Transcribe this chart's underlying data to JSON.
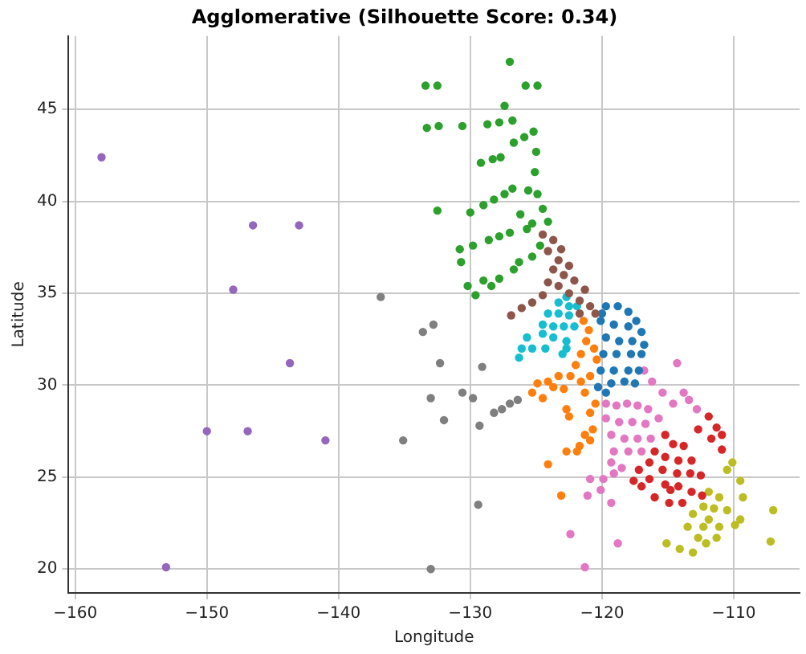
{
  "chart_data": {
    "type": "scatter",
    "title": "Agglomerative (Silhouette Score: 0.34)",
    "xlabel": "Longitude",
    "ylabel": "Latitude",
    "xlim": [
      -160.5,
      -105
    ],
    "ylim": [
      18.7,
      49
    ],
    "xticks": [
      -160,
      -150,
      -140,
      -130,
      -120,
      -110
    ],
    "yticks": [
      20,
      25,
      30,
      35,
      40,
      45
    ],
    "grid": true,
    "marker": "circle",
    "series": [
      {
        "color": "#9467bd",
        "x": [
          -158.0,
          -146.5,
          -143.0,
          -148.0,
          -143.7,
          -150.0,
          -146.9,
          -141.0,
          -153.1
        ],
        "values": [
          42.4,
          38.7,
          38.7,
          35.2,
          31.2,
          27.5,
          27.5,
          27.0,
          20.1
        ]
      },
      {
        "color": "#7f7f7f",
        "x": [
          -136.8,
          -133.6,
          -132.8,
          -132.3,
          -129.1,
          -133.0,
          -130.6,
          -129.8,
          -132.0,
          -129.3,
          -135.1,
          -129.4,
          -133.0,
          -128.2,
          -127.6,
          -127.0,
          -126.4
        ],
        "values": [
          34.8,
          32.9,
          33.3,
          31.2,
          31.0,
          29.3,
          29.6,
          29.3,
          28.1,
          27.8,
          27.0,
          23.5,
          20.0,
          28.5,
          28.7,
          29.0,
          29.2
        ]
      },
      {
        "color": "#2ca02c",
        "x": [
          -127.0,
          -133.4,
          -132.5,
          -125.8,
          -124.9,
          -127.4,
          -133.3,
          -132.4,
          -130.6,
          -128.7,
          -127.8,
          -126.8,
          -125.2,
          -125.9,
          -126.7,
          -125.0,
          -129.2,
          -128.3,
          -127.7,
          -125.1,
          -125.6,
          -124.9,
          -129.0,
          -128.2,
          -127.4,
          -126.8,
          -132.5,
          -130.0,
          -126.2,
          -124.5,
          -124.1,
          -125.3,
          -130.8,
          -129.8,
          -128.6,
          -127.8,
          -127.0,
          -125.7,
          -130.7,
          -125.3,
          -126.3,
          -126.7,
          -124.7,
          -130.2,
          -129.0,
          -128.4,
          -129.6,
          -127.8
        ],
        "values": [
          47.6,
          46.3,
          46.3,
          46.3,
          46.3,
          45.2,
          44.0,
          44.1,
          44.1,
          44.2,
          44.3,
          44.4,
          43.8,
          43.5,
          43.2,
          42.7,
          42.1,
          42.3,
          42.4,
          41.6,
          40.6,
          40.4,
          39.8,
          40.1,
          40.4,
          40.7,
          39.5,
          39.4,
          39.3,
          39.6,
          38.9,
          38.8,
          37.4,
          37.6,
          37.9,
          38.1,
          38.3,
          38.5,
          36.7,
          37.0,
          36.7,
          36.3,
          37.6,
          35.4,
          35.7,
          35.4,
          34.9,
          35.8
        ]
      },
      {
        "color": "#8c564b",
        "x": [
          -124.5,
          -123.7,
          -123.1,
          -124.1,
          -123.3,
          -122.5,
          -123.7,
          -122.9,
          -122.1,
          -121.3,
          -123.3,
          -122.5,
          -121.7,
          -120.9,
          -120.5,
          -124.5,
          -125.3,
          -126.1,
          -126.9,
          -121.7,
          -124.1
        ],
        "values": [
          38.2,
          37.9,
          37.4,
          37.3,
          36.8,
          36.5,
          36.3,
          36.0,
          35.7,
          35.2,
          35.4,
          35.0,
          34.6,
          34.3,
          33.9,
          34.9,
          34.5,
          34.2,
          33.8,
          33.9,
          35.6
        ]
      },
      {
        "color": "#17becf",
        "x": [
          -122.7,
          -123.3,
          -122.5,
          -121.9,
          -124.1,
          -123.3,
          -122.5,
          -124.5,
          -123.7,
          -122.9,
          -122.1,
          -125.7,
          -124.5,
          -123.7,
          -122.7,
          -126.1,
          -125.3,
          -124.3,
          -122.7,
          -126.3,
          -123.0
        ],
        "values": [
          34.8,
          34.5,
          34.3,
          34.3,
          33.9,
          33.9,
          33.8,
          33.3,
          33.2,
          33.2,
          33.2,
          32.6,
          32.8,
          32.6,
          32.4,
          32.0,
          32.0,
          32.0,
          32.0,
          31.5,
          31.7
        ]
      },
      {
        "color": "#ff7f0e",
        "x": [
          -121.4,
          -121.0,
          -121.2,
          -120.6,
          -120.4,
          -121.6,
          -122.0,
          -122.4,
          -123.3,
          -124.1,
          -124.9,
          -125.3,
          -124.5,
          -123.7,
          -122.9,
          -121.6,
          -120.9,
          -121.3,
          -120.5,
          -122.7,
          -122.5,
          -120.9,
          -120.7,
          -121.3,
          -121.7,
          -120.9,
          -122.7,
          -121.9,
          -124.1,
          -123.1
        ],
        "values": [
          33.5,
          33.0,
          32.4,
          32.0,
          31.4,
          31.7,
          31.1,
          30.5,
          30.5,
          30.2,
          30.1,
          29.6,
          29.3,
          29.9,
          29.8,
          30.2,
          30.5,
          29.6,
          29.0,
          28.7,
          28.3,
          28.5,
          27.6,
          27.3,
          26.7,
          27.0,
          26.4,
          26.4,
          25.7,
          24.0
        ]
      },
      {
        "color": "#1f77b4",
        "x": [
          -120.0,
          -119.7,
          -118.8,
          -118.0,
          -117.4,
          -117.0,
          -120.1,
          -119.1,
          -118.0,
          -119.7,
          -118.7,
          -117.7,
          -119.9,
          -118.9,
          -117.8,
          -117.0,
          -120.1,
          -119.1,
          -118.0,
          -117.2,
          -120.3,
          -119.3,
          -118.3,
          -117.5,
          -119.7,
          -116.8
        ],
        "values": [
          33.9,
          34.3,
          34.3,
          34.0,
          33.5,
          32.9,
          33.5,
          33.3,
          33.2,
          32.6,
          32.4,
          32.4,
          31.7,
          31.7,
          31.7,
          31.7,
          30.8,
          30.8,
          30.8,
          30.8,
          29.9,
          30.1,
          30.2,
          30.1,
          29.6,
          32.2
        ]
      },
      {
        "color": "#e377c2",
        "x": [
          -114.3,
          -116.8,
          -116.2,
          -115.4,
          -114.6,
          -113.8,
          -113.4,
          -112.8,
          -119.7,
          -118.9,
          -118.1,
          -117.3,
          -116.5,
          -115.7,
          -119.7,
          -118.7,
          -117.7,
          -116.7,
          -119.3,
          -118.3,
          -117.3,
          -116.3,
          -119.1,
          -118.0,
          -117.0,
          -119.3,
          -118.5,
          -119.9,
          -120.9,
          -119.1,
          -121.1,
          -120.1,
          -119.3,
          -122.4,
          -118.8,
          -121.3
        ],
        "values": [
          31.2,
          30.8,
          30.2,
          29.6,
          29.0,
          29.6,
          29.2,
          28.7,
          29.0,
          28.9,
          29.0,
          28.9,
          28.7,
          28.2,
          28.2,
          28.0,
          28.0,
          27.9,
          27.3,
          27.1,
          27.1,
          27.1,
          26.4,
          26.4,
          26.4,
          25.8,
          25.5,
          24.9,
          24.9,
          25.2,
          24.0,
          24.3,
          23.6,
          21.9,
          21.4,
          20.1
        ]
      },
      {
        "color": "#d62728",
        "x": [
          -111.9,
          -111.3,
          -110.9,
          -111.7,
          -112.7,
          -110.9,
          -115.2,
          -114.6,
          -113.8,
          -116.0,
          -115.2,
          -114.2,
          -113.2,
          -116.4,
          -115.4,
          -114.3,
          -113.3,
          -112.5,
          -117.2,
          -116.4,
          -115.2,
          -114.2,
          -113.2,
          -112.4,
          -117.6,
          -116.0,
          -114.9,
          -113.9,
          -114.8,
          -117.0
        ],
        "values": [
          28.3,
          27.7,
          27.3,
          27.1,
          27.6,
          26.5,
          27.3,
          26.8,
          26.7,
          26.4,
          26.1,
          25.9,
          25.9,
          25.8,
          25.4,
          25.2,
          25.2,
          25.1,
          25.4,
          24.9,
          24.6,
          24.5,
          24.2,
          24.0,
          24.8,
          23.9,
          23.6,
          23.6,
          24.3,
          24.5
        ]
      },
      {
        "color": "#bcbd22",
        "x": [
          -110.1,
          -110.5,
          -109.5,
          -111.9,
          -111.1,
          -109.3,
          -112.3,
          -111.5,
          -110.5,
          -113.1,
          -111.9,
          -109.5,
          -107.0,
          -113.5,
          -112.3,
          -111.1,
          -109.9,
          -112.7,
          -111.3,
          -115.1,
          -114.1,
          -113.1,
          -112.1,
          -107.2
        ],
        "values": [
          25.8,
          25.4,
          24.8,
          24.2,
          23.9,
          23.9,
          23.4,
          23.3,
          23.2,
          23.0,
          22.7,
          22.7,
          23.2,
          22.3,
          22.3,
          22.3,
          22.4,
          21.7,
          21.7,
          21.4,
          21.1,
          20.9,
          21.4,
          21.5
        ]
      }
    ]
  }
}
